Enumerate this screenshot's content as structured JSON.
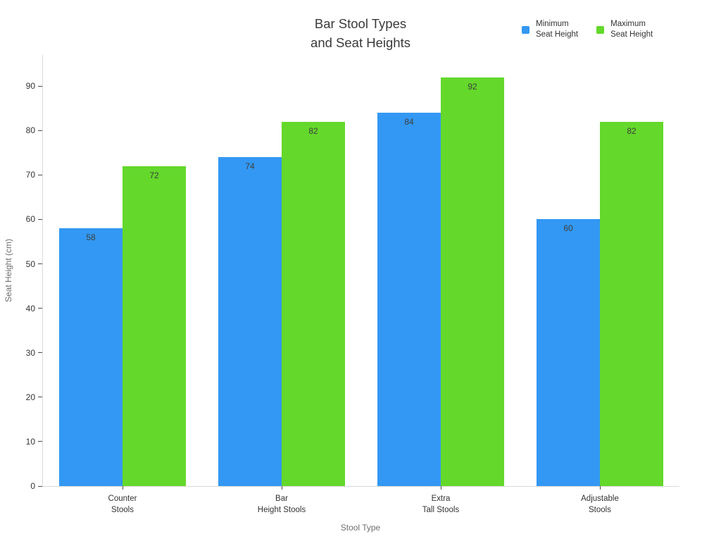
{
  "chart_data": {
    "type": "bar",
    "title": "Bar Stool Types\nand Seat Heights",
    "xlabel": "Stool Type",
    "ylabel": "Seat Height (cm)",
    "categories": [
      "Counter\nStools",
      "Bar\nHeight Stools",
      "Extra\nTall Stools",
      "Adjustable\nStools"
    ],
    "series": [
      {
        "name": "Minimum\nSeat Height",
        "color": "#3398f3",
        "values": [
          58,
          74,
          84,
          60
        ]
      },
      {
        "name": "Maximum\nSeat Height",
        "color": "#64d82b",
        "values": [
          72,
          82,
          92,
          82
        ]
      }
    ],
    "yticks": [
      0,
      10,
      20,
      30,
      40,
      50,
      60,
      70,
      80,
      90
    ],
    "ylim": [
      0,
      97
    ],
    "grid": false,
    "legend_position": "top-right",
    "bar_value_labels": true
  },
  "colors": {
    "background": "#ffffff",
    "axis_line": "#d9d9d9",
    "tick_mark": "#4d4d4d",
    "tick_label": "#333333",
    "axis_title": "#6e6e6e",
    "title": "#3a3a3a",
    "value_label": "#3d3d3d"
  }
}
